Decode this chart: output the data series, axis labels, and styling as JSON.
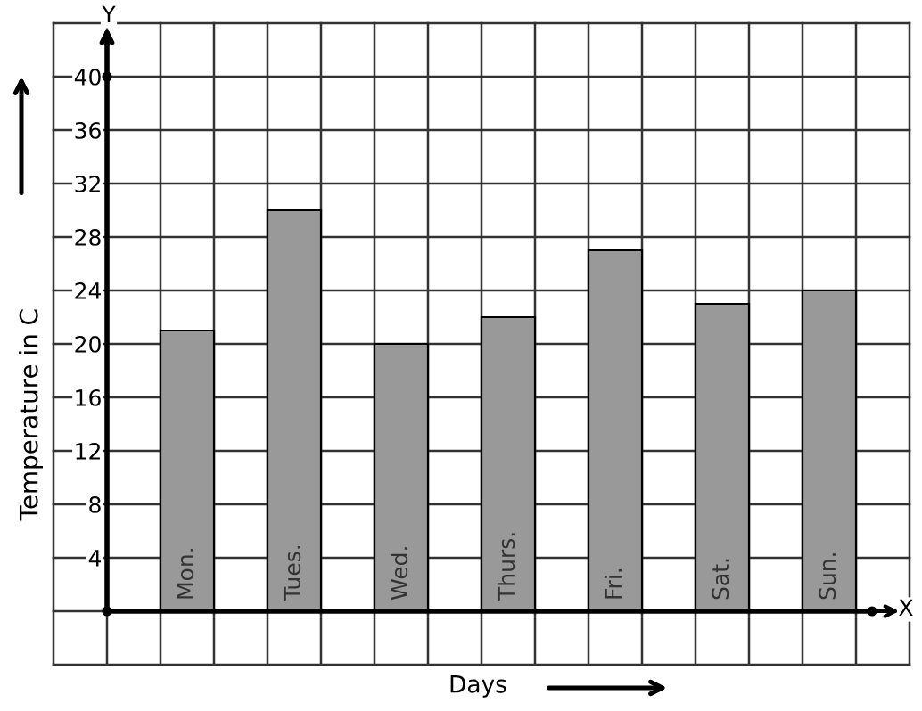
{
  "chart_data": {
    "type": "bar",
    "xlabel": "Days",
    "ylabel": "Temperature in C",
    "categories": [
      "Mon.",
      "Tues.",
      "Wed.",
      "Thurs.",
      "Fri.",
      "Sat.",
      "Sun."
    ],
    "values": [
      21,
      30,
      20,
      22,
      27,
      23,
      24
    ],
    "color": "#999999",
    "ylim": [
      -4,
      44
    ],
    "yticks": [
      4,
      8,
      12,
      16,
      20,
      24,
      28,
      32,
      36,
      40
    ],
    "grid": true,
    "annotations": [
      "Y",
      "X"
    ]
  }
}
